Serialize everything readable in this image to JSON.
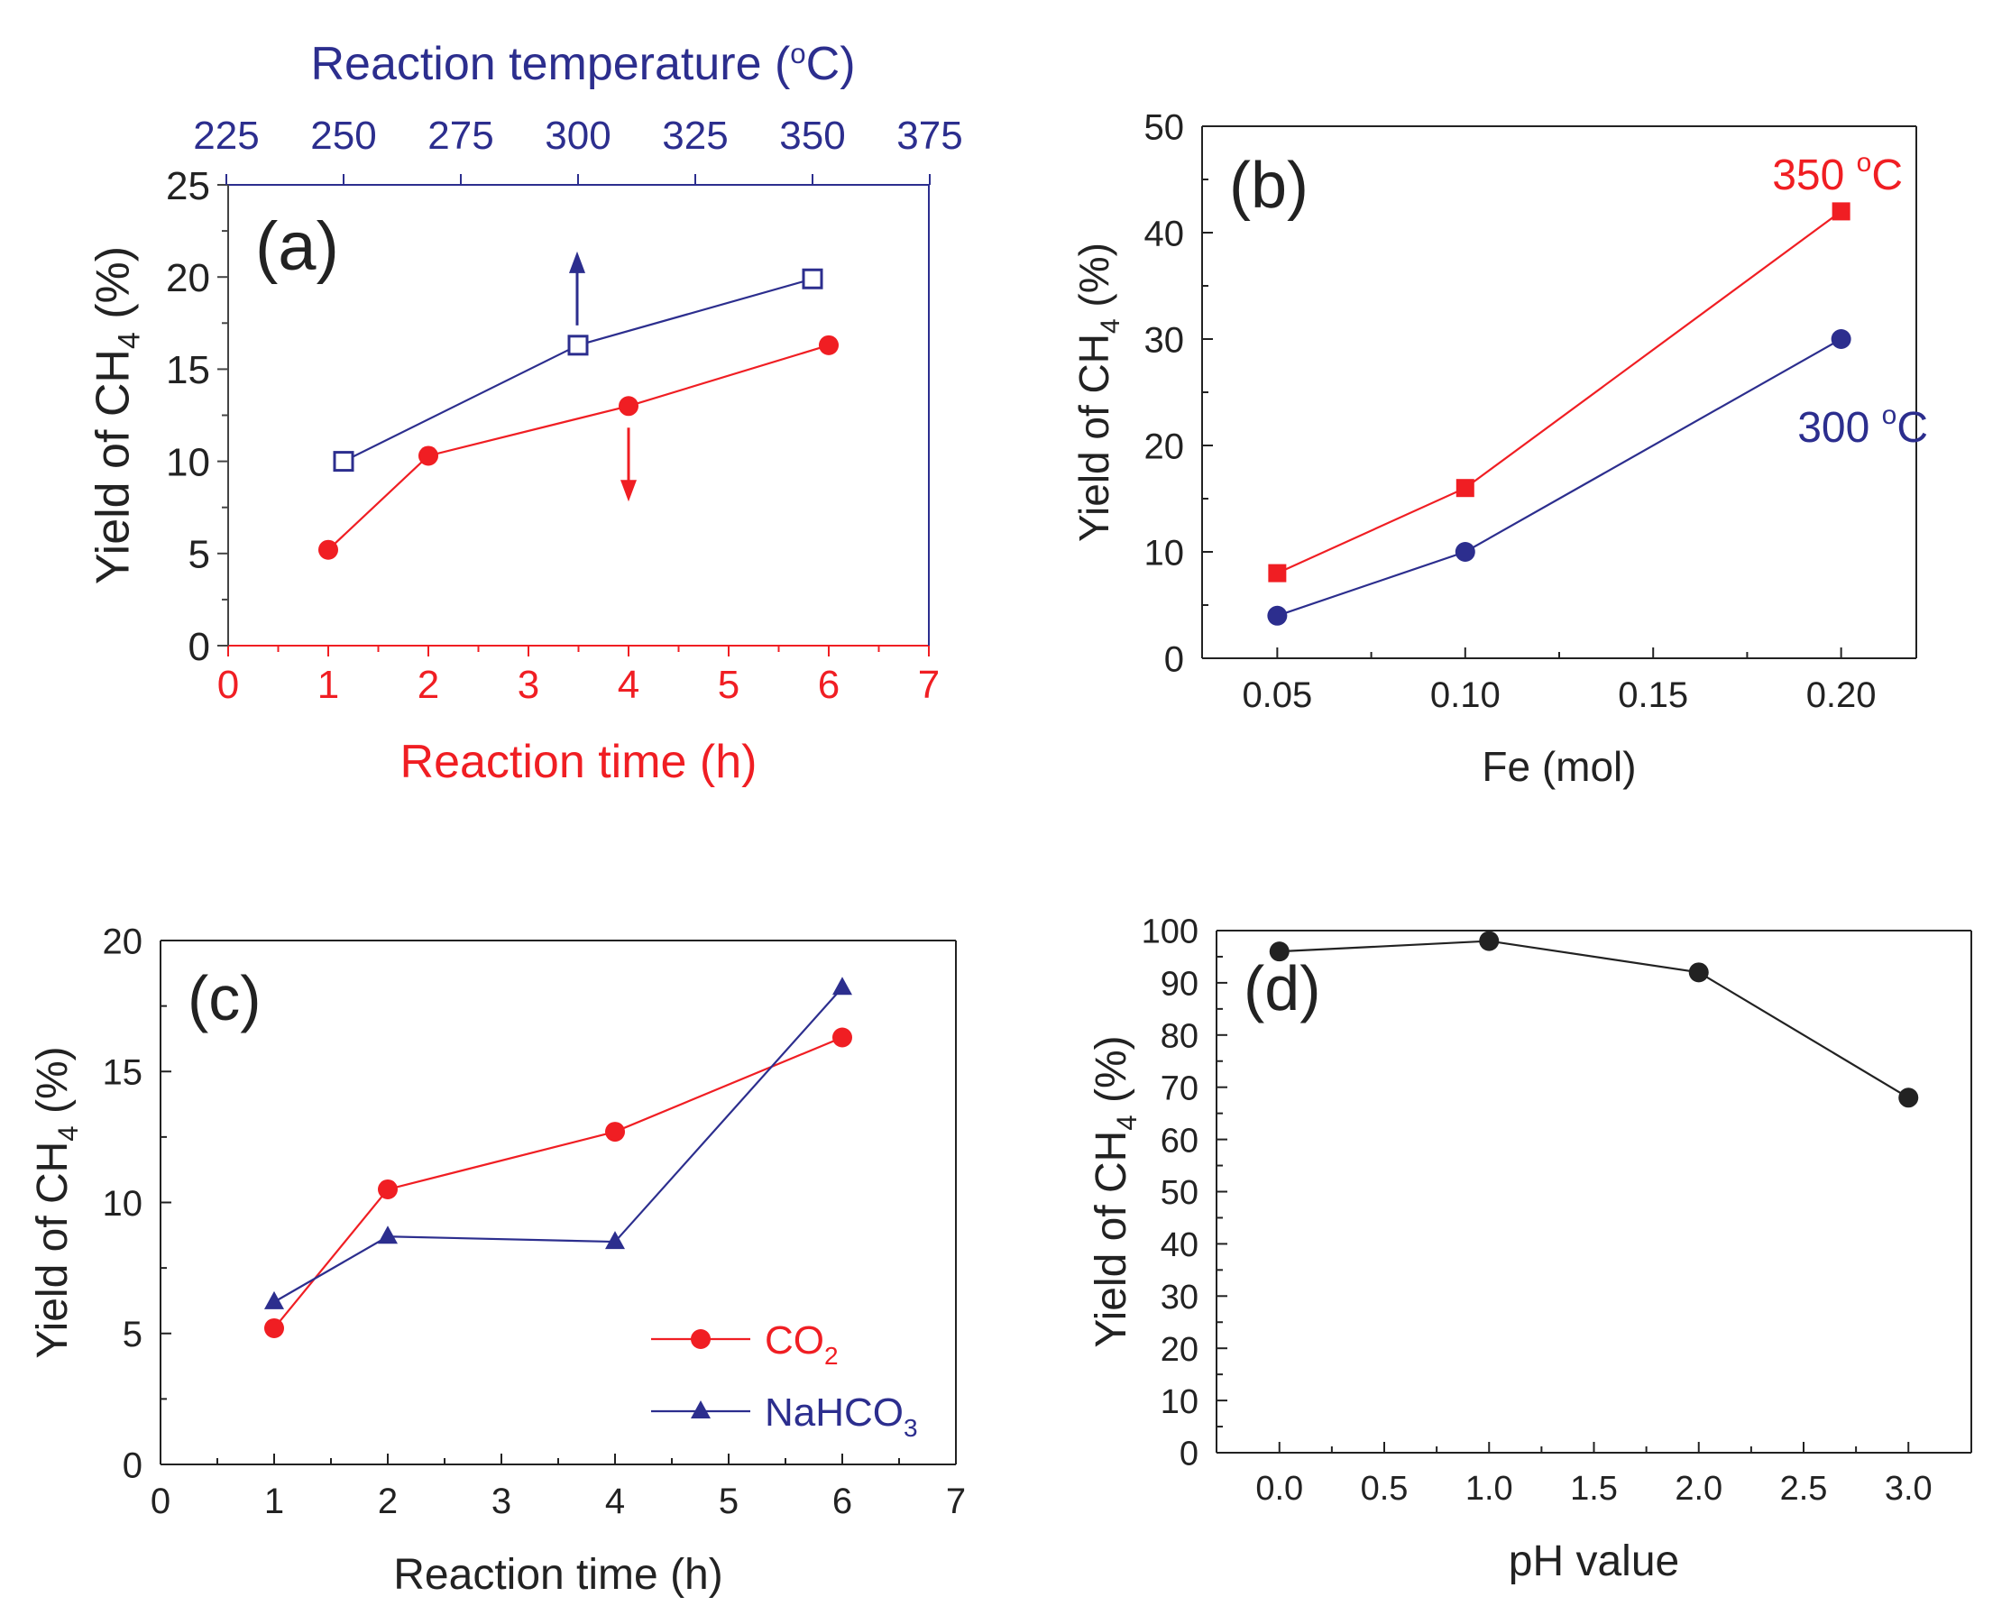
{
  "colors": {
    "red": "#f01e23",
    "blue": "#2c2e8e",
    "black": "#222222"
  },
  "chart_data": [
    {
      "id": "a",
      "panel_label": "(a)",
      "type": "line",
      "xlabel": "Reaction time (h)",
      "ylabel": "Yield of CH4 (%)",
      "ylabel_main": "Yield of CH",
      "ylabel_sub": "4",
      "ylabel_tail": " (%)",
      "x2label_main": "Reaction temperature (",
      "x2label_sup": "o",
      "x2label_tail": "C)",
      "xlim": [
        0,
        7
      ],
      "x2lim": [
        225,
        375
      ],
      "ylim": [
        0,
        25
      ],
      "xticks": [
        "0",
        "1",
        "2",
        "3",
        "4",
        "5",
        "6",
        "7"
      ],
      "x2ticks": [
        "225",
        "250",
        "275",
        "300",
        "325",
        "350",
        "375"
      ],
      "yticks": [
        "0",
        "5",
        "10",
        "15",
        "20",
        "25"
      ],
      "series": [
        {
          "axis": "bottom",
          "marker": "filled-circle",
          "color": "#f01e23",
          "x": [
            1,
            2,
            4,
            6
          ],
          "y": [
            5.2,
            10.3,
            13.0,
            16.3
          ]
        },
        {
          "axis": "top",
          "marker": "open-square",
          "color": "#2c2e8e",
          "x": [
            250,
            300,
            350
          ],
          "y": [
            10.0,
            16.3,
            19.9
          ]
        }
      ]
    },
    {
      "id": "b",
      "panel_label": "(b)",
      "type": "line",
      "xlabel": "Fe (mol)",
      "ylabel": "Yield of CH4 (%)",
      "ylabel_main": "Yield of CH",
      "ylabel_sub": "4",
      "ylabel_tail": " (%)",
      "xlim": [
        0.03,
        0.22
      ],
      "ylim": [
        0,
        50
      ],
      "xticks": [
        "0.05",
        "0.10",
        "0.15",
        "0.20"
      ],
      "yticks": [
        "0",
        "10",
        "20",
        "30",
        "40",
        "50"
      ],
      "series": [
        {
          "label_main": "350 ",
          "label_sup": "o",
          "label_tail": "C",
          "marker": "filled-square",
          "color": "#f01e23",
          "x": [
            0.05,
            0.1,
            0.2
          ],
          "y": [
            8,
            16,
            42
          ]
        },
        {
          "label_main": "300 ",
          "label_sup": "o",
          "label_tail": "C",
          "marker": "filled-circle",
          "color": "#2c2e8e",
          "x": [
            0.05,
            0.1,
            0.2
          ],
          "y": [
            4,
            10,
            30
          ]
        }
      ]
    },
    {
      "id": "c",
      "panel_label": "(c)",
      "type": "line",
      "xlabel": "Reaction time (h)",
      "ylabel": "Yield of CH4 (%)",
      "ylabel_main": "Yield of CH",
      "ylabel_sub": "4",
      "ylabel_tail": " (%)",
      "xlim": [
        0,
        7
      ],
      "ylim": [
        0,
        20
      ],
      "xticks": [
        "0",
        "1",
        "2",
        "3",
        "4",
        "5",
        "6",
        "7"
      ],
      "yticks": [
        "0",
        "5",
        "10",
        "15",
        "20"
      ],
      "legend_position": "bottom-right",
      "series": [
        {
          "name": "CO2",
          "name_main": "CO",
          "name_sub": "2",
          "marker": "filled-circle",
          "color": "#f01e23",
          "x": [
            1,
            2,
            4,
            6
          ],
          "y": [
            5.2,
            10.5,
            12.7,
            16.3
          ]
        },
        {
          "name": "NaHCO3",
          "name_main": "NaHCO",
          "name_sub": "3",
          "marker": "filled-triangle",
          "color": "#2c2e8e",
          "x": [
            1,
            2,
            4,
            6
          ],
          "y": [
            6.2,
            8.7,
            8.5,
            18.2
          ]
        }
      ]
    },
    {
      "id": "d",
      "panel_label": "(d)",
      "type": "line",
      "xlabel": "pH value",
      "ylabel": "Yield of CH4 (%)",
      "ylabel_main": "Yield of CH",
      "ylabel_sub": "4",
      "ylabel_tail": " (%)",
      "xlim": [
        -0.3,
        3.3
      ],
      "ylim": [
        0,
        100
      ],
      "xticks": [
        "0.0",
        "0.5",
        "1.0",
        "1.5",
        "2.0",
        "2.5",
        "3.0"
      ],
      "yticks": [
        "0",
        "10",
        "20",
        "30",
        "40",
        "50",
        "60",
        "70",
        "80",
        "90",
        "100"
      ],
      "series": [
        {
          "marker": "filled-circle",
          "color": "#222222",
          "x": [
            0.0,
            1.0,
            2.0,
            3.0
          ],
          "y": [
            96,
            98,
            92,
            68
          ]
        }
      ]
    }
  ]
}
